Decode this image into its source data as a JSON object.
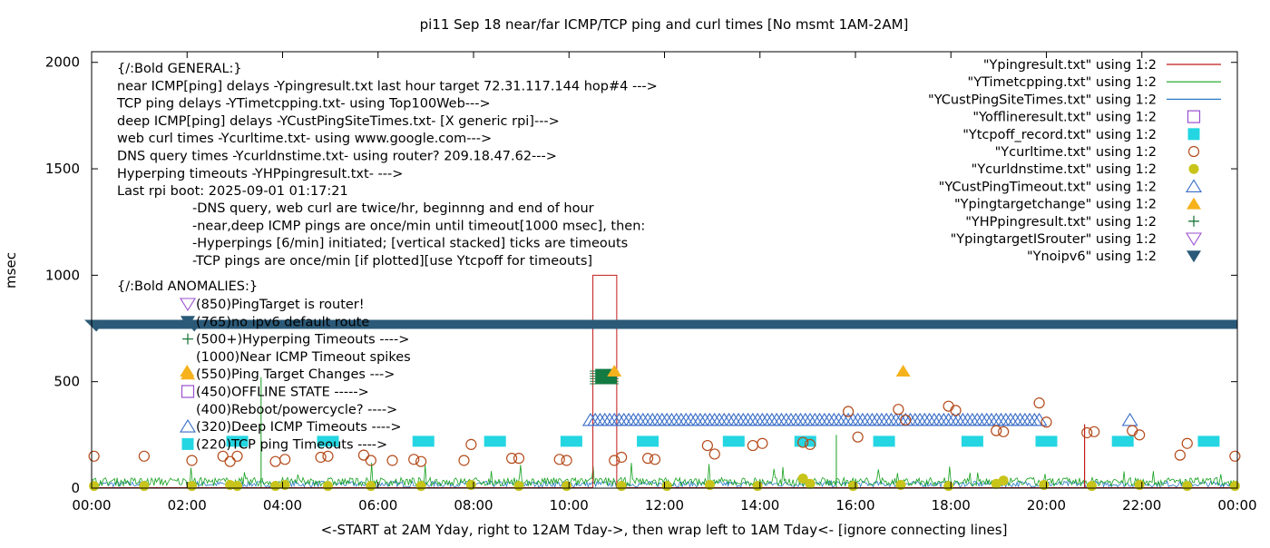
{
  "chart_data": {
    "type": "scatter",
    "title": "pi11 Sep 18  near/far ICMP/TCP ping and curl times [No msmt 1AM-2AM]",
    "xlabel": "<-START at 2AM Yday, right to 12AM Tday->, then wrap left to 1AM Tday<- [ignore connecting lines]",
    "ylabel": "msec",
    "xlim": [
      0,
      24
    ],
    "ylim": [
      0,
      2050
    ],
    "x_ticks": [
      {
        "value": 0,
        "label": "00:00"
      },
      {
        "value": 2,
        "label": "02:00"
      },
      {
        "value": 4,
        "label": "04:00"
      },
      {
        "value": 6,
        "label": "06:00"
      },
      {
        "value": 8,
        "label": "08:00"
      },
      {
        "value": 10,
        "label": "10:00"
      },
      {
        "value": 12,
        "label": "12:00"
      },
      {
        "value": 14,
        "label": "14:00"
      },
      {
        "value": 16,
        "label": "16:00"
      },
      {
        "value": 18,
        "label": "18:00"
      },
      {
        "value": 20,
        "label": "20:00"
      },
      {
        "value": 22,
        "label": "22:00"
      },
      {
        "value": 24,
        "label": "00:00"
      }
    ],
    "y_ticks": [
      {
        "value": 0,
        "label": "0"
      },
      {
        "value": 500,
        "label": "500"
      },
      {
        "value": 1000,
        "label": "1000"
      },
      {
        "value": 1500,
        "label": "1500"
      },
      {
        "value": 2000,
        "label": "2000"
      }
    ],
    "notes": [
      "{/:Bold GENERAL:}",
      "near ICMP[ping] delays -Ypingresult.txt last hour target 72.31.117.144 hop#4 --->",
      "TCP ping delays -YTimetcpping.txt- using Top100Web--->",
      "deep ICMP[ping] delays -YCustPingSiteTimes.txt- [X generic rpi]--->",
      "web curl times -Ycurltime.txt- using www.google.com--->",
      "DNS query times -Ycurldnstime.txt- using router? 209.18.47.62--->",
      "Hyperping timeouts -YHPpingresult.txt- --->",
      "Last rpi boot: 2025-09-01 01:17:21"
    ],
    "notes_indented": [
      "-DNS query, web curl are twice/hr, beginnng and end of hour",
      "-near,deep ICMP pings are once/min until timeout[1000 msec], then:",
      "  -Hyperpings [6/min] initiated; [vertical stacked] ticks are timeouts",
      "-TCP pings are once/min [if plotted][use Ytcpoff for timeouts]"
    ],
    "anomalies_header": "{/:Bold ANOMALIES:}",
    "anomalies": [
      {
        "label": "(850)PingTarget is router!",
        "y": 850,
        "marker": "tri-down-open",
        "color": "#9a4fd0"
      },
      {
        "label": "(765)no ipv6 default route",
        "y": 765,
        "marker": "tri-down",
        "color": "#2b5a78"
      },
      {
        "label": "(500+)Hyperping Timeouts ---->",
        "y": 690,
        "marker": "plus",
        "color": "#1e7a3c"
      },
      {
        "label": "(1000)Near ICMP Timeout spikes",
        "y": 620,
        "marker": "none",
        "color": "#000000"
      },
      {
        "label": "(550)Ping Target Changes --->",
        "y": 550,
        "marker": "tri-up",
        "color": "#f5b21d"
      },
      {
        "label": "(450)OFFLINE STATE ----->",
        "y": 450,
        "marker": "square-open",
        "color": "#9a4fd0"
      },
      {
        "label": "(400)Reboot/powercycle? ---->",
        "y": 400,
        "marker": "none",
        "color": "#000000"
      },
      {
        "label": "(320)Deep ICMP Timeouts ---->",
        "y": 320,
        "marker": "tri-up-open",
        "color": "#3a6ec8"
      },
      {
        "label": "(220)TCP ping Timeouts ---->",
        "y": 220,
        "marker": "square",
        "color": "#24d6e2"
      }
    ],
    "legend_position": "top-right",
    "legend": [
      {
        "name": "\"Ypingresult.txt\" using 1:2",
        "kind": "line",
        "color": "#c21b1b"
      },
      {
        "name": "\"YTimetcpping.txt\" using 1:2",
        "kind": "line",
        "color": "#15a01e"
      },
      {
        "name": "\"YCustPingSiteTimes.txt\" using 1:2",
        "kind": "line",
        "color": "#2a7bc4"
      },
      {
        "name": "\"Yofflineresult.txt\" using 1:2",
        "kind": "square-open",
        "color": "#9a4fd0"
      },
      {
        "name": "\"Ytcpoff_record.txt\" using 1:2",
        "kind": "square",
        "color": "#24d6e2"
      },
      {
        "name": "\"Ycurltime.txt\" using 1:2",
        "kind": "circle-open",
        "color": "#b44a1a"
      },
      {
        "name": "\"Ycurldnstime.txt\" using 1:2",
        "kind": "circle",
        "color": "#c8c41a"
      },
      {
        "name": "\"YCustPingTimeout.txt\" using 1:2",
        "kind": "tri-up-open",
        "color": "#3a6ec8"
      },
      {
        "name": "\"Ypingtargetchange\" using 1:2",
        "kind": "tri-up",
        "color": "#f5b21d"
      },
      {
        "name": "\"YHPpingresult.txt\" using 1:2",
        "kind": "plus",
        "color": "#1e7a3c"
      },
      {
        "name": "\"YpingtargetISrouter\" using 1:2",
        "kind": "tri-down-open",
        "color": "#9a4fd0"
      },
      {
        "name": "\"Ynoipv6\" using 1:2",
        "kind": "tri-down",
        "color": "#2b5a78"
      }
    ],
    "series": {
      "near_icmp_spikes": [
        {
          "start": 10.5,
          "end": 11.0,
          "y": 1000
        },
        {
          "start": 20.8,
          "end": 20.85,
          "y": 300
        }
      ],
      "ipv6_band": {
        "y": 765,
        "from": 0,
        "to": 24
      },
      "ping_target_changes": [
        [
          2.0,
          550
        ],
        [
          10.95,
          550
        ],
        [
          17.0,
          550
        ]
      ],
      "hyperping_block": {
        "from": 10.55,
        "to": 11.0,
        "y_from": 490,
        "y_to": 560
      },
      "deep_icmp_timeouts": {
        "from": 10.45,
        "to": 19.9,
        "y": 320,
        "extra": [
          [
            21.75,
            320
          ]
        ]
      },
      "tcp_timeouts_y": 220,
      "tcp_timeouts_x": [
        3.05,
        4.95,
        6.95,
        8.45,
        10.05,
        11.65,
        13.45,
        14.95,
        16.6,
        18.45,
        20.0,
        21.6,
        23.4
      ],
      "curl_times": [
        [
          0.05,
          150
        ],
        [
          1.1,
          150
        ],
        [
          2.1,
          130
        ],
        [
          2.75,
          150
        ],
        [
          2.9,
          125
        ],
        [
          3.05,
          150
        ],
        [
          3.85,
          125
        ],
        [
          4.05,
          135
        ],
        [
          4.8,
          145
        ],
        [
          4.95,
          150
        ],
        [
          5.7,
          155
        ],
        [
          5.85,
          130
        ],
        [
          6.3,
          130
        ],
        [
          6.75,
          135
        ],
        [
          6.9,
          125
        ],
        [
          7.8,
          130
        ],
        [
          7.95,
          205
        ],
        [
          8.8,
          140
        ],
        [
          8.95,
          140
        ],
        [
          9.8,
          135
        ],
        [
          9.95,
          130
        ],
        [
          10.95,
          130
        ],
        [
          11.1,
          145
        ],
        [
          11.65,
          140
        ],
        [
          11.8,
          135
        ],
        [
          12.9,
          200
        ],
        [
          13.05,
          160
        ],
        [
          13.85,
          200
        ],
        [
          14.05,
          210
        ],
        [
          14.9,
          215
        ],
        [
          15.05,
          205
        ],
        [
          15.85,
          360
        ],
        [
          16.05,
          240
        ],
        [
          16.9,
          370
        ],
        [
          17.05,
          320
        ],
        [
          17.95,
          385
        ],
        [
          18.1,
          365
        ],
        [
          18.95,
          270
        ],
        [
          19.1,
          265
        ],
        [
          19.85,
          400
        ],
        [
          20.0,
          310
        ],
        [
          20.85,
          260
        ],
        [
          21.0,
          265
        ],
        [
          21.8,
          270
        ],
        [
          21.95,
          250
        ],
        [
          22.8,
          155
        ],
        [
          22.95,
          210
        ],
        [
          23.95,
          150
        ]
      ],
      "dns_times": [
        [
          0.05,
          10
        ],
        [
          1.1,
          10
        ],
        [
          2.1,
          10
        ],
        [
          2.9,
          15
        ],
        [
          3.05,
          10
        ],
        [
          3.85,
          10
        ],
        [
          4.05,
          15
        ],
        [
          4.95,
          10
        ],
        [
          5.85,
          10
        ],
        [
          6.9,
          10
        ],
        [
          7.95,
          15
        ],
        [
          8.95,
          10
        ],
        [
          9.95,
          10
        ],
        [
          11.1,
          10
        ],
        [
          12.05,
          10
        ],
        [
          12.95,
          15
        ],
        [
          13.95,
          10
        ],
        [
          14.9,
          45
        ],
        [
          15.05,
          20
        ],
        [
          15.95,
          10
        ],
        [
          16.95,
          15
        ],
        [
          17.95,
          10
        ],
        [
          18.95,
          20
        ],
        [
          19.1,
          35
        ],
        [
          19.95,
          15
        ],
        [
          20.95,
          10
        ],
        [
          21.95,
          15
        ],
        [
          22.95,
          10
        ],
        [
          23.95,
          10
        ]
      ]
    }
  }
}
